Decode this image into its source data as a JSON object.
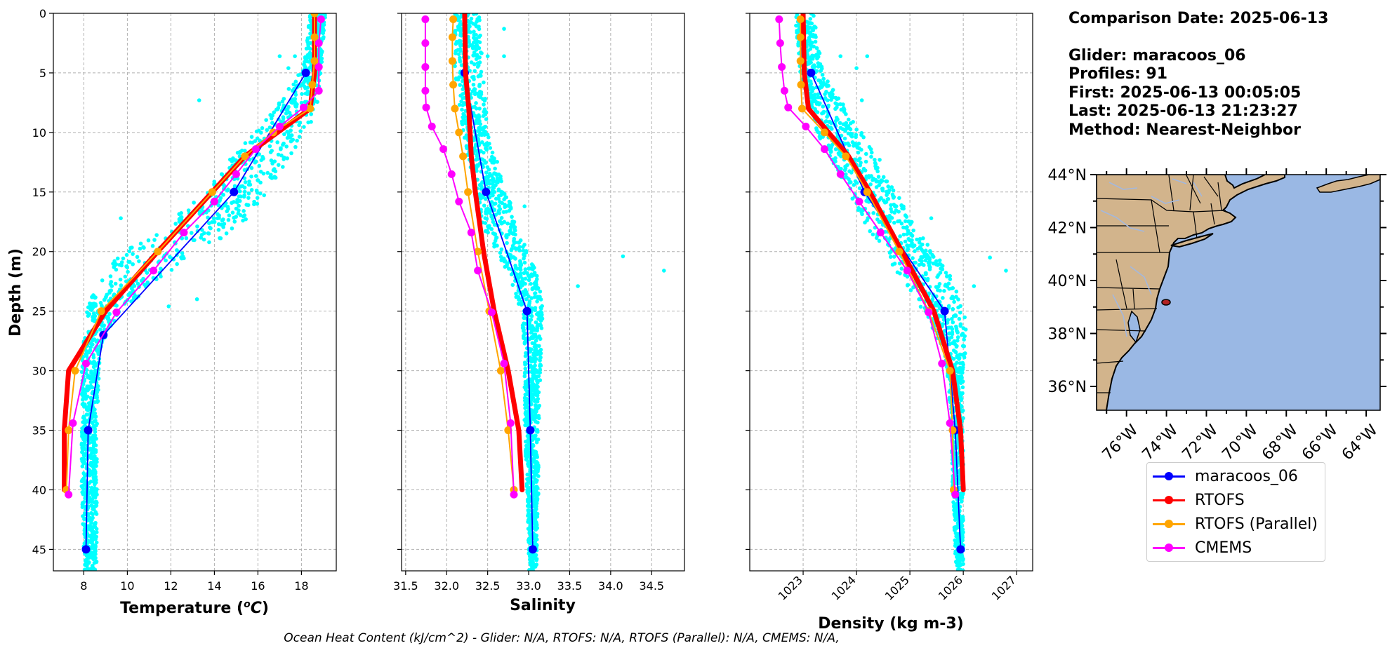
{
  "info": {
    "comparison_date": "Comparison Date: 2025-06-13",
    "glider": "Glider: maracoos_06",
    "profiles": "Profiles: 91",
    "first": "First: 2025-06-13 00:05:05",
    "last": "Last: 2025-06-13 21:23:27",
    "method": "Method: Nearest-Neighbor"
  },
  "footer_text": "Ocean Heat Content (kJ/cm^2) - Glider: N/A,  RTOFS: N/A,  RTOFS (Parallel): N/A,  CMEMS: N/A,",
  "colors": {
    "glider": "#0000ff",
    "rtofs": "#ff0000",
    "rtofs_parallel": "#ffa500",
    "cmems": "#ff00ff",
    "scatter": "#00ffff",
    "land": "#d2b48c",
    "ocean": "#9ab8e4",
    "grid": "#b0b0b0"
  },
  "legend": [
    {
      "label": "maracoos_06",
      "color": "#0000ff",
      "lw": 2.5
    },
    {
      "label": "RTOFS",
      "color": "#ff0000",
      "lw": 2.5
    },
    {
      "label": "RTOFS (Parallel)",
      "color": "#ffa500",
      "lw": 2.5
    },
    {
      "label": "CMEMS",
      "color": "#ff00ff",
      "lw": 2.5
    }
  ],
  "chart_data": [
    {
      "type": "line",
      "xlabel": "Temperature (°C)",
      "ylabel": "Depth (m)",
      "xlim": [
        6.6,
        19.6
      ],
      "ylim": [
        46.8,
        0
      ],
      "xticks": [
        8,
        10,
        12,
        14,
        16,
        18
      ],
      "xtick_labels": [
        "8",
        "10",
        "12",
        "14",
        "16",
        "18"
      ],
      "yticks": [
        0,
        5,
        10,
        15,
        20,
        25,
        30,
        35,
        40,
        45
      ],
      "ytick_labels": [
        "0",
        "5",
        "10",
        "15",
        "20",
        "25",
        "30",
        "35",
        "40",
        "45"
      ],
      "grid": true,
      "scatter_envelope": [
        [
          0,
          18.4,
          19.1
        ],
        [
          3,
          18.2,
          19.0
        ],
        [
          5,
          17.9,
          18.9
        ],
        [
          8,
          16.8,
          18.7
        ],
        [
          10,
          15.8,
          18.4
        ],
        [
          12,
          14.8,
          17.5
        ],
        [
          15,
          13.6,
          16.4
        ],
        [
          18,
          11.6,
          15.2
        ],
        [
          20,
          9.8,
          13.2
        ],
        [
          22,
          8.8,
          11.8
        ],
        [
          24,
          8.2,
          10.4
        ],
        [
          26,
          8.0,
          9.3
        ],
        [
          28,
          7.9,
          8.8
        ],
        [
          30,
          7.9,
          8.7
        ],
        [
          35,
          7.9,
          8.6
        ],
        [
          40,
          7.9,
          8.6
        ],
        [
          45,
          8.0,
          8.6
        ],
        [
          46.5,
          8.0,
          8.6
        ]
      ],
      "scatter_outliers": [
        [
          17.7,
          3.6
        ],
        [
          17.4,
          4.6
        ],
        [
          17.0,
          3.6
        ],
        [
          13.3,
          7.3
        ],
        [
          9.7,
          17.2
        ],
        [
          14.4,
          17.3
        ],
        [
          13.2,
          24.0
        ],
        [
          10.2,
          23.1
        ],
        [
          11.9,
          24.6
        ]
      ],
      "series": [
        {
          "name": "maracoos_06",
          "color": "#0000ff",
          "lw": 1.8,
          "ms": 12,
          "points": [
            [
              18.2,
              5
            ],
            [
              14.9,
              15
            ],
            [
              8.9,
              27
            ],
            [
              8.2,
              35
            ],
            [
              8.1,
              45
            ]
          ]
        },
        {
          "name": "RTOFS",
          "color": "#ff0000",
          "lw": 7,
          "points": [
            [
              18.6,
              0
            ],
            [
              18.6,
              5
            ],
            [
              18.4,
              8
            ],
            [
              15.4,
              12
            ],
            [
              13.9,
              15
            ],
            [
              11.4,
              20
            ],
            [
              9.0,
              25
            ],
            [
              7.3,
              30
            ],
            [
              7.1,
              35
            ],
            [
              7.1,
              40
            ]
          ]
        },
        {
          "name": "RTOFS (Parallel)",
          "color": "#ffa500",
          "lw": 2,
          "ms": 11,
          "points": [
            [
              18.6,
              0
            ],
            [
              18.6,
              2
            ],
            [
              18.6,
              4
            ],
            [
              18.5,
              6
            ],
            [
              18.4,
              8
            ],
            [
              16.7,
              10
            ],
            [
              15.4,
              12
            ],
            [
              13.9,
              15
            ],
            [
              11.4,
              20
            ],
            [
              8.8,
              25
            ],
            [
              7.6,
              30
            ],
            [
              7.3,
              35
            ],
            [
              7.2,
              40
            ]
          ]
        },
        {
          "name": "CMEMS",
          "color": "#ff00ff",
          "lw": 2,
          "ms": 11,
          "points": [
            [
              18.9,
              0.5
            ],
            [
              18.8,
              2.5
            ],
            [
              18.8,
              4.5
            ],
            [
              18.8,
              6.5
            ],
            [
              18.1,
              7.9
            ],
            [
              17.0,
              9.5
            ],
            [
              15.9,
              11.4
            ],
            [
              15.0,
              13.5
            ],
            [
              14.0,
              15.8
            ],
            [
              12.6,
              18.4
            ],
            [
              11.2,
              21.6
            ],
            [
              9.5,
              25.1
            ],
            [
              8.1,
              29.4
            ],
            [
              7.5,
              34.4
            ],
            [
              7.3,
              40.4
            ]
          ]
        }
      ]
    },
    {
      "type": "line",
      "xlabel": "Salinity",
      "ylabel": "",
      "xlim": [
        31.45,
        34.9
      ],
      "ylim": [
        46.8,
        0
      ],
      "xticks": [
        31.5,
        32.0,
        32.5,
        33.0,
        33.5,
        34.0,
        34.5
      ],
      "xtick_labels": [
        "31.5",
        "32.0",
        "32.5",
        "33.0",
        "33.5",
        "34.0",
        "34.5"
      ],
      "yticks": [
        0,
        5,
        10,
        15,
        20,
        25,
        30,
        35,
        40,
        45
      ],
      "grid": true,
      "scatter_envelope": [
        [
          0,
          32.1,
          32.4
        ],
        [
          5,
          32.1,
          32.45
        ],
        [
          10,
          32.2,
          32.5
        ],
        [
          15,
          32.35,
          32.75
        ],
        [
          18,
          32.45,
          32.85
        ],
        [
          20,
          32.6,
          33.0
        ],
        [
          22,
          32.75,
          33.1
        ],
        [
          25,
          32.9,
          33.2
        ],
        [
          28,
          32.95,
          33.15
        ],
        [
          30,
          32.95,
          33.15
        ],
        [
          35,
          32.95,
          33.12
        ],
        [
          40,
          32.98,
          33.12
        ],
        [
          45,
          33.0,
          33.1
        ],
        [
          46.5,
          33.0,
          33.1
        ]
      ],
      "scatter_outliers": [
        [
          32.7,
          1.3
        ],
        [
          32.7,
          3.6
        ],
        [
          32.5,
          3.6
        ],
        [
          32.95,
          16.2
        ],
        [
          33.6,
          22.9
        ],
        [
          34.15,
          20.4
        ],
        [
          34.65,
          21.6
        ]
      ],
      "series": [
        {
          "name": "maracoos_06",
          "color": "#0000ff",
          "lw": 1.8,
          "ms": 12,
          "points": [
            [
              32.22,
              5
            ],
            [
              32.48,
              15
            ],
            [
              32.98,
              25
            ],
            [
              33.02,
              35
            ],
            [
              33.05,
              45
            ]
          ]
        },
        {
          "name": "RTOFS",
          "color": "#ff0000",
          "lw": 7,
          "points": [
            [
              32.22,
              0
            ],
            [
              32.23,
              5
            ],
            [
              32.27,
              8
            ],
            [
              32.3,
              12
            ],
            [
              32.35,
              15
            ],
            [
              32.45,
              20
            ],
            [
              32.58,
              25
            ],
            [
              32.75,
              30
            ],
            [
              32.88,
              35
            ],
            [
              32.92,
              40
            ]
          ]
        },
        {
          "name": "RTOFS (Parallel)",
          "color": "#ffa500",
          "lw": 2,
          "ms": 11,
          "points": [
            [
              32.08,
              0.5
            ],
            [
              32.07,
              2
            ],
            [
              32.07,
              4
            ],
            [
              32.08,
              6
            ],
            [
              32.1,
              8
            ],
            [
              32.15,
              10
            ],
            [
              32.2,
              12
            ],
            [
              32.26,
              15
            ],
            [
              32.38,
              20
            ],
            [
              32.52,
              25
            ],
            [
              32.66,
              30
            ],
            [
              32.75,
              35
            ],
            [
              32.82,
              40
            ]
          ]
        },
        {
          "name": "CMEMS",
          "color": "#ff00ff",
          "lw": 2,
          "ms": 11,
          "points": [
            [
              31.74,
              0.5
            ],
            [
              31.74,
              2.5
            ],
            [
              31.74,
              4.5
            ],
            [
              31.74,
              6.5
            ],
            [
              31.75,
              7.9
            ],
            [
              31.82,
              9.5
            ],
            [
              31.96,
              11.4
            ],
            [
              32.06,
              13.5
            ],
            [
              32.15,
              15.8
            ],
            [
              32.3,
              18.4
            ],
            [
              32.38,
              21.6
            ],
            [
              32.55,
              25.1
            ],
            [
              32.7,
              29.4
            ],
            [
              32.78,
              34.4
            ],
            [
              32.82,
              40.4
            ]
          ]
        }
      ]
    },
    {
      "type": "line",
      "xlabel": "Density (kg m-3)",
      "ylabel": "",
      "xlim": [
        1022.0,
        1027.3
      ],
      "ylim": [
        46.8,
        0
      ],
      "xticks": [
        1023,
        1024,
        1025,
        1026,
        1027
      ],
      "xtick_labels": [
        "1023",
        "1024",
        "1025",
        "1026",
        "1027"
      ],
      "yticks": [
        0,
        5,
        10,
        15,
        20,
        25,
        30,
        35,
        40,
        45
      ],
      "grid": true,
      "scatter_envelope": [
        [
          0,
          1022.85,
          1023.2
        ],
        [
          3,
          1022.9,
          1023.3
        ],
        [
          5,
          1022.95,
          1023.4
        ],
        [
          8,
          1023.05,
          1023.8
        ],
        [
          10,
          1023.25,
          1024.1
        ],
        [
          12,
          1023.5,
          1024.4
        ],
        [
          15,
          1023.85,
          1024.75
        ],
        [
          18,
          1024.2,
          1025.1
        ],
        [
          20,
          1024.5,
          1025.45
        ],
        [
          22,
          1024.8,
          1025.75
        ],
        [
          25,
          1025.25,
          1026.05
        ],
        [
          28,
          1025.6,
          1026.05
        ],
        [
          30,
          1025.7,
          1026.0
        ],
        [
          35,
          1025.78,
          1026.0
        ],
        [
          40,
          1025.8,
          1026.0
        ],
        [
          45,
          1025.85,
          1026.0
        ],
        [
          46.5,
          1025.85,
          1026.0
        ]
      ],
      "scatter_outliers": [
        [
          1024.2,
          3.6
        ],
        [
          1024.0,
          4.6
        ],
        [
          1023.7,
          3.6
        ],
        [
          1024.1,
          7.3
        ],
        [
          1025.4,
          17.2
        ],
        [
          1026.5,
          20.5
        ],
        [
          1026.8,
          21.6
        ],
        [
          1026.2,
          22.9
        ],
        [
          1025.2,
          24.0
        ]
      ],
      "series": [
        {
          "name": "maracoos_06",
          "color": "#0000ff",
          "lw": 1.8,
          "ms": 12,
          "points": [
            [
              1023.15,
              5
            ],
            [
              1024.15,
              15
            ],
            [
              1025.65,
              25
            ],
            [
              1025.85,
              35
            ],
            [
              1025.95,
              45
            ]
          ]
        },
        {
          "name": "RTOFS",
          "color": "#ff0000",
          "lw": 7,
          "points": [
            [
              1023.0,
              0
            ],
            [
              1023.02,
              5
            ],
            [
              1023.1,
              8
            ],
            [
              1023.85,
              12
            ],
            [
              1024.25,
              15
            ],
            [
              1024.85,
              20
            ],
            [
              1025.45,
              25
            ],
            [
              1025.8,
              30
            ],
            [
              1025.95,
              35
            ],
            [
              1026.0,
              40
            ]
          ]
        },
        {
          "name": "RTOFS (Parallel)",
          "color": "#ffa500",
          "lw": 2,
          "ms": 11,
          "points": [
            [
              1022.95,
              0.5
            ],
            [
              1022.95,
              2
            ],
            [
              1022.95,
              4
            ],
            [
              1022.96,
              6
            ],
            [
              1022.98,
              8
            ],
            [
              1023.4,
              10
            ],
            [
              1023.8,
              12
            ],
            [
              1024.2,
              15
            ],
            [
              1024.8,
              20
            ],
            [
              1025.35,
              25
            ],
            [
              1025.75,
              30
            ],
            [
              1025.8,
              35
            ],
            [
              1025.82,
              40
            ]
          ]
        },
        {
          "name": "CMEMS",
          "color": "#ff00ff",
          "lw": 2,
          "ms": 11,
          "points": [
            [
              1022.55,
              0.5
            ],
            [
              1022.57,
              2.5
            ],
            [
              1022.6,
              4.5
            ],
            [
              1022.65,
              6.5
            ],
            [
              1022.72,
              7.9
            ],
            [
              1023.05,
              9.5
            ],
            [
              1023.4,
              11.4
            ],
            [
              1023.7,
              13.5
            ],
            [
              1024.05,
              15.8
            ],
            [
              1024.45,
              18.4
            ],
            [
              1024.95,
              21.6
            ],
            [
              1025.35,
              25.1
            ],
            [
              1025.6,
              29.4
            ],
            [
              1025.75,
              34.4
            ],
            [
              1025.85,
              40.4
            ]
          ]
        }
      ]
    }
  ],
  "map": {
    "lon_range": [
      -77.5,
      -63.3
    ],
    "lat_range": [
      35.1,
      44.0
    ],
    "lon_ticks": [
      -76,
      -74,
      -72,
      -70,
      -68,
      -66,
      -64
    ],
    "lon_tick_labels": [
      "76°W",
      "74°W",
      "72°W",
      "70°W",
      "68°W",
      "66°W",
      "64°W"
    ],
    "lat_ticks": [
      36,
      38,
      40,
      42,
      44
    ],
    "lat_tick_labels": [
      "36°N",
      "38°N",
      "40°N",
      "42°N",
      "44°N"
    ],
    "glider_position": [
      -73.6,
      39.25
    ]
  }
}
